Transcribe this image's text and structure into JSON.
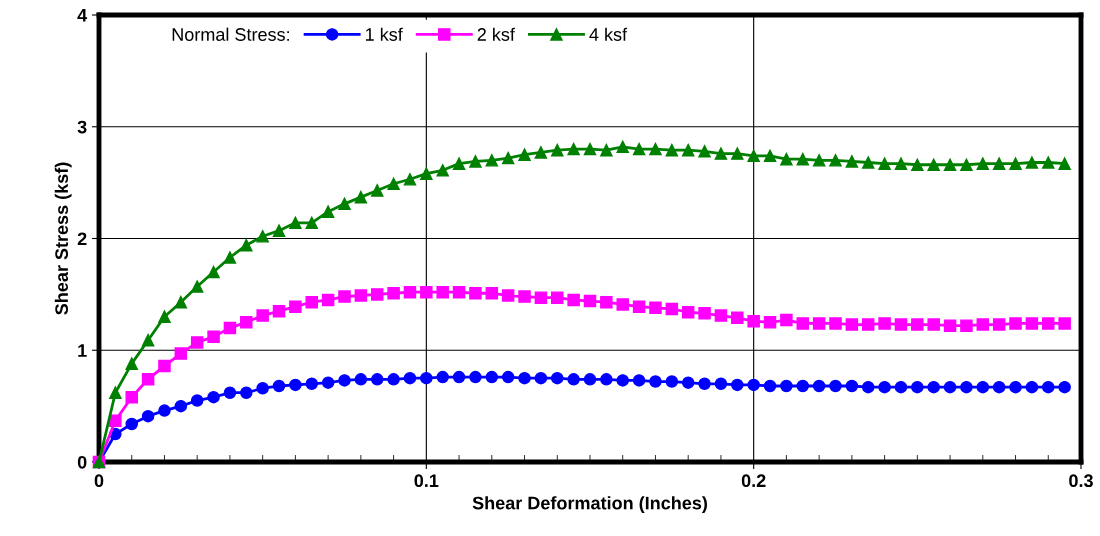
{
  "chart_data": {
    "type": "line",
    "xlabel": "Shear Deformation (Inches)",
    "ylabel": "Shear Stress (ksf)",
    "legend_title": "Normal Stress:",
    "legend": "top left",
    "grid": true,
    "xlim": [
      0,
      0.3
    ],
    "xticks": [
      {
        "value": 0,
        "label": "0"
      },
      0.1,
      0.2,
      0.3
    ],
    "ylim": [
      0,
      4
    ],
    "yticks": [
      0,
      1,
      2,
      3,
      4
    ],
    "x": [
      0,
      0.005,
      0.01,
      0.015,
      0.02,
      0.025,
      0.03,
      0.035,
      0.04,
      0.045,
      0.05,
      0.055,
      0.06,
      0.065,
      0.07,
      0.075,
      0.08,
      0.085,
      0.09,
      0.095,
      0.1,
      0.105,
      0.11,
      0.115,
      0.12,
      0.125,
      0.13,
      0.135,
      0.14,
      0.145,
      0.15,
      0.155,
      0.16,
      0.165,
      0.17,
      0.175,
      0.18,
      0.185,
      0.19,
      0.195,
      0.2,
      0.205,
      0.21,
      0.215,
      0.22,
      0.225,
      0.23,
      0.235,
      0.24,
      0.245,
      0.25,
      0.255,
      0.26,
      0.265,
      0.27,
      0.275,
      0.28,
      0.285,
      0.29,
      0.295
    ],
    "series": [
      {
        "name": "1 ksf",
        "color": "#0000ff",
        "marker": "circle",
        "values": [
          0,
          0.25,
          0.34,
          0.41,
          0.46,
          0.5,
          0.55,
          0.58,
          0.62,
          0.62,
          0.66,
          0.68,
          0.69,
          0.7,
          0.71,
          0.73,
          0.74,
          0.74,
          0.74,
          0.75,
          0.75,
          0.76,
          0.76,
          0.76,
          0.76,
          0.76,
          0.75,
          0.75,
          0.75,
          0.74,
          0.74,
          0.74,
          0.73,
          0.73,
          0.72,
          0.72,
          0.71,
          0.7,
          0.7,
          0.69,
          0.69,
          0.68,
          0.68,
          0.68,
          0.68,
          0.68,
          0.68,
          0.67,
          0.67,
          0.67,
          0.67,
          0.67,
          0.67,
          0.67,
          0.67,
          0.67,
          0.67,
          0.67,
          0.67,
          0.67
        ]
      },
      {
        "name": "2 ksf",
        "color": "#ff00ff",
        "marker": "square",
        "values": [
          0,
          0.37,
          0.58,
          0.74,
          0.86,
          0.97,
          1.07,
          1.12,
          1.2,
          1.25,
          1.31,
          1.35,
          1.39,
          1.43,
          1.45,
          1.48,
          1.49,
          1.5,
          1.51,
          1.52,
          1.52,
          1.52,
          1.52,
          1.51,
          1.51,
          1.49,
          1.48,
          1.47,
          1.47,
          1.45,
          1.44,
          1.43,
          1.41,
          1.39,
          1.38,
          1.37,
          1.34,
          1.33,
          1.31,
          1.29,
          1.26,
          1.25,
          1.27,
          1.24,
          1.24,
          1.24,
          1.23,
          1.23,
          1.24,
          1.23,
          1.23,
          1.23,
          1.22,
          1.22,
          1.23,
          1.23,
          1.24,
          1.24,
          1.24,
          1.24
        ]
      },
      {
        "name": "4 ksf",
        "color": "#008000",
        "marker": "triangle",
        "values": [
          0,
          0.62,
          0.88,
          1.09,
          1.3,
          1.43,
          1.57,
          1.7,
          1.83,
          1.94,
          2.02,
          2.07,
          2.14,
          2.14,
          2.24,
          2.31,
          2.37,
          2.43,
          2.49,
          2.53,
          2.58,
          2.61,
          2.67,
          2.69,
          2.7,
          2.72,
          2.75,
          2.77,
          2.79,
          2.8,
          2.8,
          2.79,
          2.82,
          2.8,
          2.8,
          2.79,
          2.79,
          2.78,
          2.76,
          2.76,
          2.74,
          2.74,
          2.71,
          2.71,
          2.7,
          2.7,
          2.69,
          2.68,
          2.67,
          2.67,
          2.66,
          2.66,
          2.66,
          2.66,
          2.67,
          2.67,
          2.67,
          2.68,
          2.68,
          2.67
        ]
      }
    ]
  }
}
